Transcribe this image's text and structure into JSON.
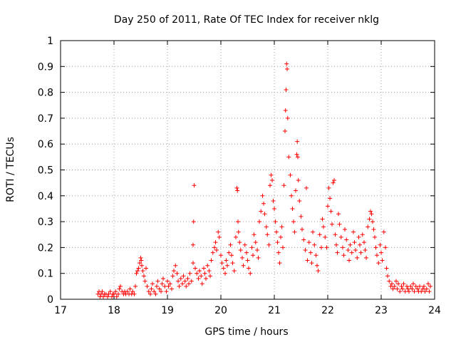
{
  "chart_data": {
    "type": "scatter",
    "title": "Day 250 of 2011, Rate Of TEC Index for receiver nklg",
    "xlabel": "GPS time / hours",
    "ylabel": "ROTI / TECUs",
    "xlim": [
      17,
      24
    ],
    "ylim": [
      0,
      1
    ],
    "xticks": [
      "17",
      "18",
      "19",
      "20",
      "21",
      "22",
      "23",
      "24"
    ],
    "yticks": [
      "0",
      "0.1",
      "0.2",
      "0.3",
      "0.4",
      "0.5",
      "0.6",
      "0.7",
      "0.8",
      "0.9",
      "1"
    ],
    "grid": true,
    "marker": "+",
    "colors": {
      "series": "#ff0000",
      "grid": "#a0a0a0",
      "axis": "#000000"
    },
    "series": [
      {
        "points": [
          [
            17.7,
            0.02
          ],
          [
            17.72,
            0.03
          ],
          [
            17.74,
            0.01
          ],
          [
            17.76,
            0.02
          ],
          [
            17.78,
            0.03
          ],
          [
            17.8,
            0.01
          ],
          [
            17.82,
            0.02
          ],
          [
            17.85,
            0.02
          ],
          [
            17.88,
            0.01
          ],
          [
            17.9,
            0.02
          ],
          [
            17.93,
            0.03
          ],
          [
            17.96,
            0.01
          ],
          [
            17.98,
            0.02
          ],
          [
            18.0,
            0.02
          ],
          [
            18.03,
            0.03
          ],
          [
            18.05,
            0.01
          ],
          [
            18.08,
            0.02
          ],
          [
            18.1,
            0.04
          ],
          [
            18.12,
            0.05
          ],
          [
            18.15,
            0.03
          ],
          [
            18.18,
            0.02
          ],
          [
            18.2,
            0.03
          ],
          [
            18.22,
            0.02
          ],
          [
            18.25,
            0.03
          ],
          [
            18.28,
            0.02
          ],
          [
            18.3,
            0.04
          ],
          [
            18.33,
            0.02
          ],
          [
            18.35,
            0.03
          ],
          [
            18.38,
            0.02
          ],
          [
            18.4,
            0.05
          ],
          [
            18.42,
            0.1
          ],
          [
            18.44,
            0.11
          ],
          [
            18.46,
            0.12
          ],
          [
            18.48,
            0.14
          ],
          [
            18.5,
            0.16
          ],
          [
            18.51,
            0.15
          ],
          [
            18.52,
            0.13
          ],
          [
            18.54,
            0.11
          ],
          [
            18.56,
            0.09
          ],
          [
            18.58,
            0.07
          ],
          [
            18.6,
            0.12
          ],
          [
            18.62,
            0.05
          ],
          [
            18.65,
            0.03
          ],
          [
            18.68,
            0.02
          ],
          [
            18.7,
            0.04
          ],
          [
            18.72,
            0.06
          ],
          [
            18.75,
            0.03
          ],
          [
            18.78,
            0.02
          ],
          [
            18.8,
            0.05
          ],
          [
            18.82,
            0.07
          ],
          [
            18.85,
            0.04
          ],
          [
            18.88,
            0.03
          ],
          [
            18.9,
            0.06
          ],
          [
            18.92,
            0.08
          ],
          [
            18.95,
            0.05
          ],
          [
            18.98,
            0.03
          ],
          [
            19.0,
            0.07
          ],
          [
            19.02,
            0.05
          ],
          [
            19.05,
            0.06
          ],
          [
            19.08,
            0.04
          ],
          [
            19.1,
            0.09
          ],
          [
            19.12,
            0.11
          ],
          [
            19.15,
            0.13
          ],
          [
            19.18,
            0.1
          ],
          [
            19.2,
            0.07
          ],
          [
            19.22,
            0.05
          ],
          [
            19.25,
            0.08
          ],
          [
            19.28,
            0.06
          ],
          [
            19.3,
            0.09
          ],
          [
            19.33,
            0.07
          ],
          [
            19.35,
            0.05
          ],
          [
            19.38,
            0.08
          ],
          [
            19.4,
            0.06
          ],
          [
            19.42,
            0.1
          ],
          [
            19.45,
            0.07
          ],
          [
            19.48,
            0.14
          ],
          [
            19.5,
            0.44
          ],
          [
            19.49,
            0.3
          ],
          [
            19.48,
            0.21
          ],
          [
            19.52,
            0.12
          ],
          [
            19.55,
            0.1
          ],
          [
            19.58,
            0.08
          ],
          [
            19.6,
            0.11
          ],
          [
            19.63,
            0.09
          ],
          [
            19.65,
            0.06
          ],
          [
            19.68,
            0.12
          ],
          [
            19.7,
            0.1
          ],
          [
            19.72,
            0.08
          ],
          [
            19.75,
            0.13
          ],
          [
            19.78,
            0.11
          ],
          [
            19.8,
            0.09
          ],
          [
            19.82,
            0.15
          ],
          [
            19.85,
            0.18
          ],
          [
            19.88,
            0.2
          ],
          [
            19.9,
            0.22
          ],
          [
            19.92,
            0.19
          ],
          [
            19.95,
            0.26
          ],
          [
            19.97,
            0.24
          ],
          [
            20.0,
            0.17
          ],
          [
            20.02,
            0.14
          ],
          [
            20.05,
            0.12
          ],
          [
            20.08,
            0.1
          ],
          [
            20.1,
            0.15
          ],
          [
            20.12,
            0.13
          ],
          [
            20.15,
            0.18
          ],
          [
            20.18,
            0.21
          ],
          [
            20.2,
            0.17
          ],
          [
            20.22,
            0.14
          ],
          [
            20.25,
            0.11
          ],
          [
            20.28,
            0.24
          ],
          [
            20.3,
            0.43
          ],
          [
            20.31,
            0.42
          ],
          [
            20.32,
            0.3
          ],
          [
            20.33,
            0.26
          ],
          [
            20.35,
            0.22
          ],
          [
            20.37,
            0.19
          ],
          [
            20.4,
            0.16
          ],
          [
            20.42,
            0.13
          ],
          [
            20.45,
            0.21
          ],
          [
            20.48,
            0.18
          ],
          [
            20.5,
            0.15
          ],
          [
            20.52,
            0.12
          ],
          [
            20.55,
            0.1
          ],
          [
            20.58,
            0.2
          ],
          [
            20.6,
            0.17
          ],
          [
            20.62,
            0.25
          ],
          [
            20.65,
            0.22
          ],
          [
            20.68,
            0.19
          ],
          [
            20.7,
            0.16
          ],
          [
            20.72,
            0.3
          ],
          [
            20.75,
            0.34
          ],
          [
            20.78,
            0.4
          ],
          [
            20.8,
            0.37
          ],
          [
            20.82,
            0.33
          ],
          [
            20.85,
            0.28
          ],
          [
            20.87,
            0.25
          ],
          [
            20.9,
            0.21
          ],
          [
            20.92,
            0.44
          ],
          [
            20.94,
            0.48
          ],
          [
            20.96,
            0.46
          ],
          [
            20.98,
            0.38
          ],
          [
            21.0,
            0.35
          ],
          [
            21.02,
            0.3
          ],
          [
            21.04,
            0.26
          ],
          [
            21.06,
            0.22
          ],
          [
            21.08,
            0.18
          ],
          [
            21.1,
            0.14
          ],
          [
            21.12,
            0.24
          ],
          [
            21.14,
            0.28
          ],
          [
            21.16,
            0.2
          ],
          [
            21.18,
            0.44
          ],
          [
            21.2,
            0.65
          ],
          [
            21.21,
            0.73
          ],
          [
            21.22,
            0.81
          ],
          [
            21.23,
            0.91
          ],
          [
            21.24,
            0.89
          ],
          [
            21.25,
            0.7
          ],
          [
            21.27,
            0.55
          ],
          [
            21.3,
            0.48
          ],
          [
            21.32,
            0.4
          ],
          [
            21.34,
            0.35
          ],
          [
            21.36,
            0.3
          ],
          [
            21.38,
            0.26
          ],
          [
            21.4,
            0.42
          ],
          [
            21.42,
            0.56
          ],
          [
            21.43,
            0.61
          ],
          [
            21.44,
            0.55
          ],
          [
            21.45,
            0.46
          ],
          [
            21.47,
            0.38
          ],
          [
            21.5,
            0.32
          ],
          [
            21.52,
            0.27
          ],
          [
            21.55,
            0.23
          ],
          [
            21.58,
            0.19
          ],
          [
            21.6,
            0.43
          ],
          [
            21.62,
            0.15
          ],
          [
            21.65,
            0.22
          ],
          [
            21.68,
            0.18
          ],
          [
            21.7,
            0.14
          ],
          [
            21.72,
            0.26
          ],
          [
            21.75,
            0.21
          ],
          [
            21.78,
            0.17
          ],
          [
            21.8,
            0.13
          ],
          [
            21.82,
            0.11
          ],
          [
            21.85,
            0.25
          ],
          [
            21.88,
            0.2
          ],
          [
            21.9,
            0.31
          ],
          [
            21.92,
            0.28
          ],
          [
            21.95,
            0.24
          ],
          [
            21.98,
            0.2
          ],
          [
            22.0,
            0.36
          ],
          [
            22.02,
            0.43
          ],
          [
            22.04,
            0.39
          ],
          [
            22.06,
            0.34
          ],
          [
            22.08,
            0.29
          ],
          [
            22.1,
            0.45
          ],
          [
            22.12,
            0.46
          ],
          [
            22.14,
            0.25
          ],
          [
            22.16,
            0.21
          ],
          [
            22.18,
            0.18
          ],
          [
            22.2,
            0.33
          ],
          [
            22.22,
            0.29
          ],
          [
            22.25,
            0.24
          ],
          [
            22.28,
            0.2
          ],
          [
            22.3,
            0.17
          ],
          [
            22.32,
            0.27
          ],
          [
            22.35,
            0.23
          ],
          [
            22.38,
            0.19
          ],
          [
            22.4,
            0.15
          ],
          [
            22.42,
            0.21
          ],
          [
            22.45,
            0.18
          ],
          [
            22.48,
            0.26
          ],
          [
            22.5,
            0.22
          ],
          [
            22.52,
            0.19
          ],
          [
            22.55,
            0.16
          ],
          [
            22.58,
            0.24
          ],
          [
            22.6,
            0.21
          ],
          [
            22.62,
            0.18
          ],
          [
            22.65,
            0.25
          ],
          [
            22.68,
            0.22
          ],
          [
            22.7,
            0.19
          ],
          [
            22.72,
            0.16
          ],
          [
            22.75,
            0.28
          ],
          [
            22.78,
            0.31
          ],
          [
            22.8,
            0.34
          ],
          [
            22.82,
            0.33
          ],
          [
            22.84,
            0.3
          ],
          [
            22.86,
            0.27
          ],
          [
            22.88,
            0.24
          ],
          [
            22.9,
            0.2
          ],
          [
            22.92,
            0.17
          ],
          [
            22.95,
            0.14
          ],
          [
            22.98,
            0.21
          ],
          [
            23.0,
            0.18
          ],
          [
            23.02,
            0.15
          ],
          [
            23.05,
            0.26
          ],
          [
            23.08,
            0.2
          ],
          [
            23.1,
            0.12
          ],
          [
            23.12,
            0.09
          ],
          [
            23.15,
            0.07
          ],
          [
            23.18,
            0.05
          ],
          [
            23.2,
            0.06
          ],
          [
            23.22,
            0.04
          ],
          [
            23.25,
            0.05
          ],
          [
            23.28,
            0.07
          ],
          [
            23.3,
            0.04
          ],
          [
            23.32,
            0.06
          ],
          [
            23.35,
            0.03
          ],
          [
            23.38,
            0.05
          ],
          [
            23.4,
            0.04
          ],
          [
            23.42,
            0.06
          ],
          [
            23.45,
            0.03
          ],
          [
            23.48,
            0.05
          ],
          [
            23.5,
            0.04
          ],
          [
            23.52,
            0.03
          ],
          [
            23.55,
            0.05
          ],
          [
            23.58,
            0.04
          ],
          [
            23.6,
            0.06
          ],
          [
            23.62,
            0.03
          ],
          [
            23.65,
            0.05
          ],
          [
            23.68,
            0.04
          ],
          [
            23.7,
            0.03
          ],
          [
            23.72,
            0.05
          ],
          [
            23.75,
            0.03
          ],
          [
            23.78,
            0.04
          ],
          [
            23.8,
            0.05
          ],
          [
            23.82,
            0.03
          ],
          [
            23.85,
            0.04
          ],
          [
            23.88,
            0.06
          ],
          [
            23.9,
            0.03
          ],
          [
            23.92,
            0.05
          ]
        ]
      }
    ]
  }
}
